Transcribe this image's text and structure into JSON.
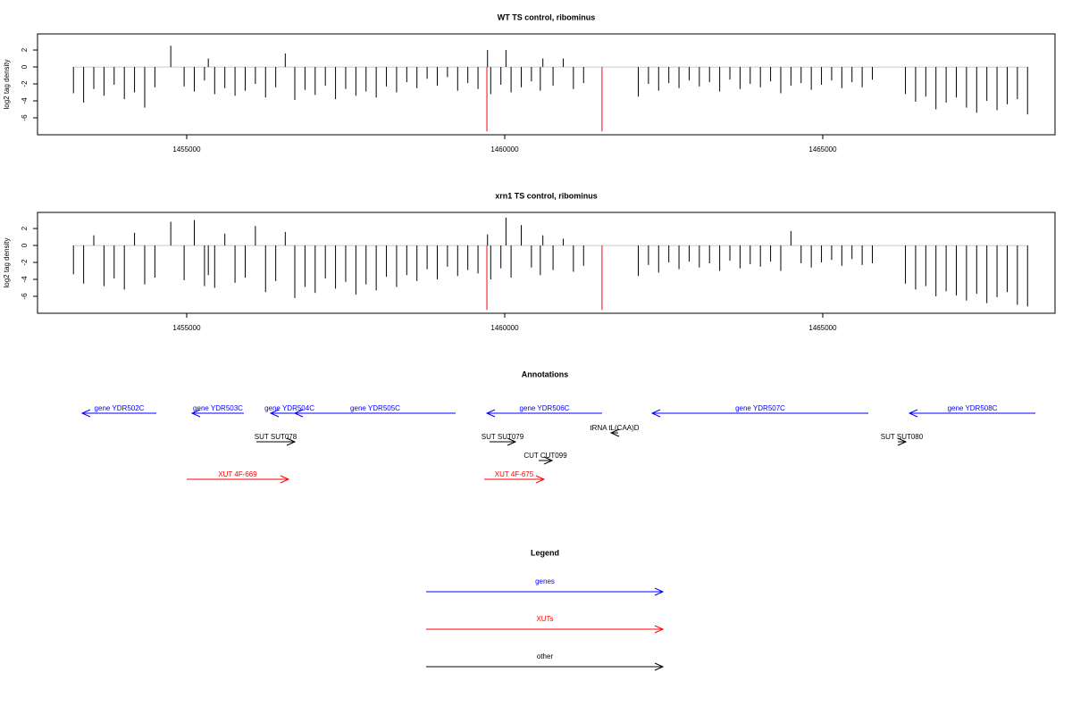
{
  "chart_data": [
    {
      "type": "bar",
      "title": "WT TS control, ribominus",
      "y_label": "log2 tag density",
      "color": "#000000",
      "xlim": [
        1452655,
        1468652
      ],
      "ylim": [
        -8,
        3.9
      ],
      "xticks": [
        1455000,
        1460000,
        1465000
      ],
      "yticks": [
        2,
        0,
        -2,
        -4,
        -6
      ],
      "x": [
        1453220,
        1453380,
        1453540,
        1453700,
        1453860,
        1454020,
        1454180,
        1454340,
        1454500,
        1454750,
        1454960,
        1455120,
        1455280,
        1455340,
        1455440,
        1455600,
        1455760,
        1455920,
        1456080,
        1456240,
        1456400,
        1456550,
        1456700,
        1456860,
        1457020,
        1457180,
        1457340,
        1457500,
        1457660,
        1457820,
        1457980,
        1458140,
        1458300,
        1458460,
        1458620,
        1458780,
        1458940,
        1459100,
        1459260,
        1459420,
        1459580,
        1459730,
        1459780,
        1459940,
        1460020,
        1460100,
        1460260,
        1460420,
        1460560,
        1460600,
        1460760,
        1460920,
        1461080,
        1461240,
        1462100,
        1462260,
        1462420,
        1462580,
        1462740,
        1462900,
        1463060,
        1463220,
        1463380,
        1463540,
        1463700,
        1463860,
        1464020,
        1464180,
        1464340,
        1464500,
        1464660,
        1464820,
        1464980,
        1465140,
        1465300,
        1465460,
        1465620,
        1465780,
        1466300,
        1466460,
        1466620,
        1466780,
        1466940,
        1467100,
        1467260,
        1467420,
        1467580,
        1467740,
        1467900,
        1468060,
        1468220
      ],
      "values": [
        -3.1,
        -4.2,
        -2.6,
        -3.4,
        -2.1,
        -3.8,
        -3.0,
        -4.8,
        -2.4,
        2.5,
        -2.3,
        -2.9,
        -1.6,
        1.0,
        -3.2,
        -2.5,
        -3.4,
        -2.8,
        -2.0,
        -3.6,
        -2.4,
        1.6,
        -3.9,
        -2.7,
        -3.3,
        -2.2,
        -3.8,
        -2.6,
        -3.4,
        -2.9,
        -3.6,
        -2.3,
        -3.0,
        -1.8,
        -2.5,
        -1.4,
        -2.2,
        -1.2,
        -2.8,
        -1.9,
        -2.6,
        2.0,
        -3.2,
        -2.1,
        2.0,
        -3.0,
        -2.4,
        -1.7,
        -2.8,
        1.0,
        -2.2,
        1.0,
        -2.6,
        -1.9,
        -3.5,
        -2.0,
        -2.8,
        -1.9,
        -2.5,
        -1.6,
        -2.3,
        -1.8,
        -2.9,
        -1.5,
        -2.6,
        -2.0,
        -2.4,
        -1.7,
        -3.1,
        -2.2,
        -1.9,
        -2.7,
        -2.1,
        -1.6,
        -2.5,
        -1.8,
        -2.4,
        -1.5,
        -3.2,
        -4.1,
        -3.5,
        -5.0,
        -4.2,
        -3.6,
        -4.8,
        -5.4,
        -4.0,
        -5.1,
        -4.4,
        -3.8,
        -5.6
      ],
      "highlights": {
        "color": "#ff0000",
        "x": [
          1459720,
          1461530
        ],
        "values": [
          -7.6,
          -7.6
        ]
      }
    },
    {
      "type": "bar",
      "title": "xrn1 TS control, ribominus",
      "y_label": "log2 tag density",
      "color": "#000000",
      "xlim": [
        1452655,
        1468652
      ],
      "ylim": [
        -8,
        3.9
      ],
      "xticks": [
        1455000,
        1460000,
        1465000
      ],
      "yticks": [
        2,
        0,
        -2,
        -4,
        -6
      ],
      "x": [
        1453220,
        1453380,
        1453540,
        1453700,
        1453860,
        1454020,
        1454180,
        1454340,
        1454500,
        1454750,
        1454960,
        1455120,
        1455280,
        1455340,
        1455440,
        1455600,
        1455760,
        1455920,
        1456080,
        1456240,
        1456400,
        1456550,
        1456700,
        1456860,
        1457020,
        1457180,
        1457340,
        1457500,
        1457660,
        1457820,
        1457980,
        1458140,
        1458300,
        1458460,
        1458620,
        1458780,
        1458940,
        1459100,
        1459260,
        1459420,
        1459580,
        1459730,
        1459780,
        1459940,
        1460020,
        1460100,
        1460260,
        1460420,
        1460560,
        1460600,
        1460760,
        1460920,
        1461080,
        1461240,
        1462100,
        1462260,
        1462420,
        1462580,
        1462740,
        1462900,
        1463060,
        1463220,
        1463380,
        1463540,
        1463700,
        1463860,
        1464020,
        1464180,
        1464340,
        1464500,
        1464660,
        1464820,
        1464980,
        1465140,
        1465300,
        1465460,
        1465620,
        1465780,
        1466300,
        1466460,
        1466620,
        1466780,
        1466940,
        1467100,
        1467260,
        1467420,
        1467580,
        1467740,
        1467900,
        1468060,
        1468220
      ],
      "values": [
        -3.4,
        -4.5,
        1.2,
        -4.8,
        -3.9,
        -5.2,
        1.5,
        -4.6,
        -3.8,
        2.8,
        -4.1,
        3.0,
        -4.8,
        -3.5,
        -5.0,
        1.4,
        -4.4,
        -3.8,
        2.3,
        -5.5,
        -4.2,
        1.6,
        -6.2,
        -4.9,
        -5.6,
        -3.9,
        -5.1,
        -4.3,
        -5.8,
        -4.6,
        -5.3,
        -3.7,
        -4.9,
        -3.5,
        -4.2,
        -2.8,
        -4.0,
        -2.5,
        -3.6,
        -2.9,
        -3.3,
        1.3,
        -4.0,
        -2.7,
        3.3,
        -3.8,
        2.4,
        -2.6,
        -3.5,
        1.2,
        -2.9,
        0.8,
        -3.1,
        -2.4,
        -3.6,
        -2.3,
        -3.2,
        -2.0,
        -2.8,
        -1.9,
        -2.6,
        -2.1,
        -3.0,
        -1.8,
        -2.7,
        -2.2,
        -2.5,
        -1.9,
        -3.0,
        1.7,
        -2.1,
        -2.6,
        -2.0,
        -1.7,
        -2.4,
        -1.6,
        -2.3,
        -2.1,
        -4.5,
        -5.2,
        -4.8,
        -6.0,
        -5.4,
        -5.9,
        -6.5,
        -5.7,
        -6.8,
        -6.1,
        -5.5,
        -7.0,
        -7.2
      ],
      "highlights": {
        "color": "#ff0000",
        "x": [
          1459720,
          1461530
        ],
        "values": [
          -7.6,
          -7.6
        ]
      }
    }
  ],
  "annotations": {
    "title": "Annotations",
    "features": [
      {
        "label": "gene YDR502C",
        "color": "#0000ff",
        "start": 1454523,
        "end": 1453357
      },
      {
        "label": "gene YDR503C",
        "color": "#0000ff",
        "start": 1455899,
        "end": 1455085
      },
      {
        "label": "gene YDR504C",
        "color": "#0000ff",
        "start": 1456911,
        "end": 1456321
      },
      {
        "label": "gene YDR505C",
        "color": "#0000ff",
        "start": 1459228,
        "end": 1456700
      },
      {
        "label": "gene YDR506C",
        "color": "#0000ff",
        "start": 1461531,
        "end": 1459720
      },
      {
        "label": "gene YDR507C",
        "color": "#0000ff",
        "start": 1465717,
        "end": 1462318
      },
      {
        "label": "gene YDR508C",
        "color": "#0000ff",
        "start": 1468343,
        "end": 1466363
      },
      {
        "label": "SUT SUT078",
        "color": "#000000",
        "start": 1456096,
        "end": 1456700
      },
      {
        "label": "SUT SUT079",
        "color": "#000000",
        "start": 1459762,
        "end": 1460169
      },
      {
        "label": "tRNA tL(CAA)D",
        "color": "#000000",
        "start": 1461784,
        "end": 1461672
      },
      {
        "label": "CUT CUT099",
        "color": "#000000",
        "start": 1460534,
        "end": 1460745
      },
      {
        "label": "SUT SUT080",
        "color": "#000000",
        "start": 1466180,
        "end": 1466307
      },
      {
        "label": "XUT 4F-669",
        "color": "#ff0000",
        "start": 1455000,
        "end": 1456601
      },
      {
        "label": "XUT 4F-675",
        "color": "#ff0000",
        "start": 1459678,
        "end": 1460618
      }
    ]
  },
  "legend": {
    "title": "Legend",
    "entries": [
      {
        "label": "genes",
        "color": "#0000ff"
      },
      {
        "label": "XUTs",
        "color": "#ff0000"
      },
      {
        "label": "other",
        "color": "#000000"
      }
    ]
  }
}
